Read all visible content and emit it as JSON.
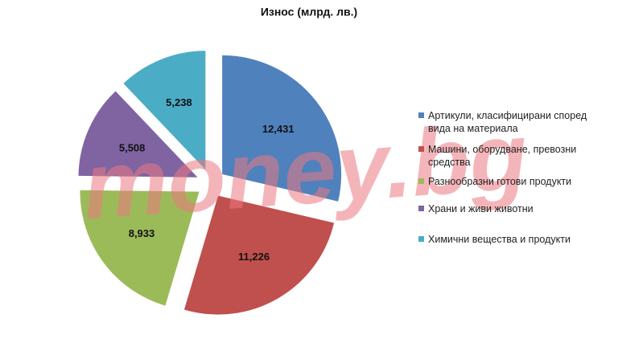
{
  "chart_data": {
    "type": "pie",
    "title": "Износ (млрд. лв.)",
    "categories": [
      "Артикули, класифицирани според вида на материала",
      "Машини, оборудване, превозни средства",
      "Разнообразни готови продукти",
      "Храни и живи животни",
      "Химични вещества и продукти"
    ],
    "values": [
      12.431,
      11.226,
      8.933,
      5.508,
      5.238
    ],
    "value_labels": [
      "12,431",
      "11,226",
      "8,933",
      "5,508",
      "5,238"
    ],
    "colors": [
      "#4f81bd",
      "#c0504d",
      "#9bbb59",
      "#8064a2",
      "#4bacc6"
    ],
    "legend": "right",
    "watermark": "money.bg"
  }
}
